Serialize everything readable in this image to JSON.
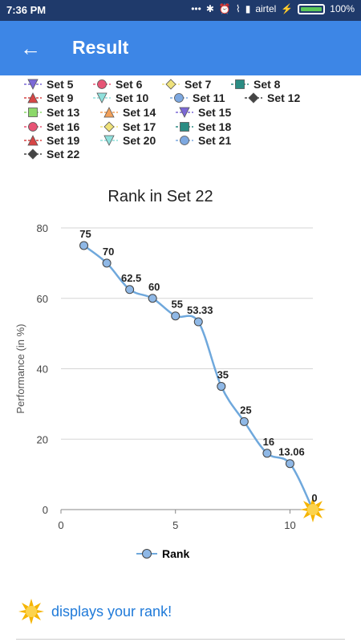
{
  "status_bar": {
    "time": "7:36 PM",
    "dots": "•••",
    "carrier": "airtel",
    "battery_text": "100%"
  },
  "app_bar": {
    "title": "Result",
    "back_icon": "back-arrow-icon"
  },
  "legend_sets": [
    {
      "label": "Set 5",
      "marker": "triangle-down",
      "color": "#7b68d6"
    },
    {
      "label": "Set 6",
      "marker": "circle",
      "color": "#e75475"
    },
    {
      "label": "Set 7",
      "marker": "diamond",
      "color": "#efe27a"
    },
    {
      "label": "Set 8",
      "marker": "square",
      "color": "#2a8c83"
    },
    {
      "label": "Set 9",
      "marker": "triangle-up",
      "color": "#d64545"
    },
    {
      "label": "Set 10",
      "marker": "triangle-down",
      "color": "#8fe0dc"
    },
    {
      "label": "Set 11",
      "marker": "circle",
      "color": "#7da8e0"
    },
    {
      "label": "Set 12",
      "marker": "diamond",
      "color": "#444444"
    },
    {
      "label": "Set 13",
      "marker": "square",
      "color": "#8cd86a"
    },
    {
      "label": "Set 14",
      "marker": "triangle-up",
      "color": "#f2a05a"
    },
    {
      "label": "Set 15",
      "marker": "triangle-down",
      "color": "#7b68d6"
    },
    {
      "label": "Set 16",
      "marker": "circle",
      "color": "#e75475"
    },
    {
      "label": "Set 17",
      "marker": "diamond",
      "color": "#efe27a"
    },
    {
      "label": "Set 18",
      "marker": "square",
      "color": "#2a8c83"
    },
    {
      "label": "Set 19",
      "marker": "triangle-up",
      "color": "#d64545"
    },
    {
      "label": "Set 20",
      "marker": "triangle-down",
      "color": "#8fe0dc"
    },
    {
      "label": "Set 21",
      "marker": "circle",
      "color": "#7da8e0"
    },
    {
      "label": "Set 22",
      "marker": "diamond",
      "color": "#444444"
    }
  ],
  "chart_data": {
    "type": "line",
    "title": "Rank in Set 22",
    "xlabel": "",
    "ylabel": "Performance (in %)",
    "xlim": [
      0,
      11
    ],
    "ylim": [
      0,
      80
    ],
    "x_ticks": [
      0,
      5,
      10
    ],
    "y_ticks": [
      0,
      20,
      40,
      60,
      80
    ],
    "grid": true,
    "series": [
      {
        "name": "Rank",
        "color": "#6fa8dc",
        "x": [
          1,
          2,
          3,
          4,
          5,
          6,
          7,
          8,
          9,
          10,
          11
        ],
        "y": [
          75,
          70,
          62.5,
          60,
          55,
          53.33,
          35,
          25,
          16,
          13.06,
          0
        ],
        "labels": [
          "75",
          "70",
          "62.5",
          "60",
          "55",
          "53.33",
          "35",
          "25",
          "16",
          "13.06",
          "0"
        ],
        "highlight_index": 10,
        "highlight_icon": "sun-icon"
      }
    ],
    "legend": "bottom-center"
  },
  "footer": {
    "note": "displays your rank!",
    "icon": "sun-icon"
  }
}
